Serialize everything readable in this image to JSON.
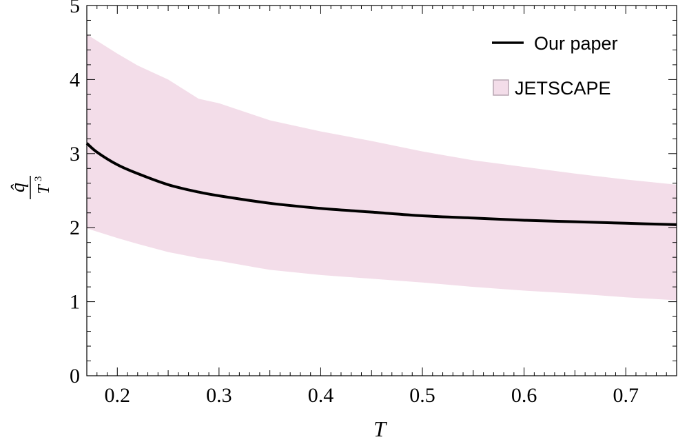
{
  "chart_data": {
    "type": "line",
    "xlabel": "T",
    "ylabel": {
      "numerator": "q̂",
      "denominator": "T",
      "exponent": "3"
    },
    "xlim": [
      0.17,
      0.75
    ],
    "ylim": [
      0,
      5
    ],
    "x_ticks": [
      "0.2",
      "0.3",
      "0.4",
      "0.5",
      "0.6",
      "0.7"
    ],
    "y_ticks": [
      "0",
      "1",
      "2",
      "3",
      "4",
      "5"
    ],
    "grid": false,
    "legend_position": "top-right",
    "series": [
      {
        "name": "Our paper",
        "kind": "line",
        "color": "#000000",
        "x": [
          0.17,
          0.18,
          0.2,
          0.22,
          0.25,
          0.28,
          0.3,
          0.35,
          0.4,
          0.45,
          0.5,
          0.55,
          0.6,
          0.65,
          0.7,
          0.75
        ],
        "y": [
          3.14,
          3.02,
          2.85,
          2.73,
          2.58,
          2.48,
          2.43,
          2.33,
          2.26,
          2.21,
          2.16,
          2.13,
          2.1,
          2.08,
          2.06,
          2.04
        ]
      },
      {
        "name": "JETSCAPE",
        "kind": "band",
        "color": "#f3dde9",
        "x": [
          0.17,
          0.2,
          0.22,
          0.25,
          0.28,
          0.3,
          0.35,
          0.4,
          0.45,
          0.5,
          0.55,
          0.6,
          0.65,
          0.7,
          0.75
        ],
        "upper": [
          4.61,
          4.35,
          4.19,
          4.0,
          3.74,
          3.68,
          3.45,
          3.3,
          3.17,
          3.03,
          2.91,
          2.82,
          2.73,
          2.65,
          2.58
        ],
        "lower": [
          1.99,
          1.86,
          1.78,
          1.67,
          1.59,
          1.55,
          1.43,
          1.36,
          1.31,
          1.26,
          1.2,
          1.15,
          1.11,
          1.06,
          1.02
        ]
      }
    ]
  }
}
